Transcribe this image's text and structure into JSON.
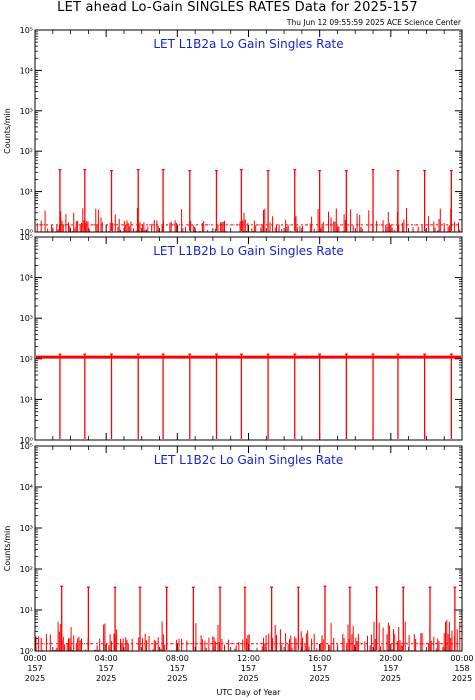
{
  "header": {
    "title": "LET ahead Lo-Gain SINGLES RATES Data for 2025-157",
    "timestamp": "Thu Jun 12 09:55:59 2025 ACE Science Center"
  },
  "colors": {
    "data": "#ff0000",
    "panel_title": "#1a22d6",
    "axes": "#000000"
  },
  "chart_data": [
    {
      "type": "line",
      "title": "LET L1B2a Lo Gain Singles Rate",
      "ylabel": "Counts/min",
      "yscale": "log",
      "ylim": [
        1,
        100000
      ],
      "yticks": [
        "10⁰",
        "10¹",
        "10²",
        "10³",
        "10⁴",
        "10⁵"
      ],
      "xlim_hours": [
        0,
        24
      ],
      "baseline": 1.5,
      "noise_max": 4,
      "spikes": [
        {
          "hour": 1.4,
          "value": 35
        },
        {
          "hour": 2.8,
          "value": 35
        },
        {
          "hour": 4.3,
          "value": 33
        },
        {
          "hour": 5.8,
          "value": 35
        },
        {
          "hour": 7.2,
          "value": 35
        },
        {
          "hour": 8.7,
          "value": 33
        },
        {
          "hour": 10.2,
          "value": 33
        },
        {
          "hour": 11.6,
          "value": 35
        },
        {
          "hour": 13.1,
          "value": 33
        },
        {
          "hour": 14.6,
          "value": 35
        },
        {
          "hour": 16.0,
          "value": 33
        },
        {
          "hour": 17.5,
          "value": 33
        },
        {
          "hour": 19.0,
          "value": 35
        },
        {
          "hour": 20.4,
          "value": 33
        },
        {
          "hour": 21.9,
          "value": 33
        },
        {
          "hour": 23.4,
          "value": 33
        }
      ]
    },
    {
      "type": "line",
      "title": "LET L1B2b Lo Gain Singles Rate",
      "ylabel": "",
      "yscale": "log",
      "ylim": [
        1,
        100000
      ],
      "yticks": [
        "10⁰",
        "10¹",
        "10²",
        "10³",
        "10⁴",
        "10⁵"
      ],
      "xlim_hours": [
        0,
        24
      ],
      "baseline": 110,
      "noise_max": 120,
      "spikes": [
        {
          "hour": 1.4,
          "value": 130
        },
        {
          "hour": 2.8,
          "value": 130
        },
        {
          "hour": 4.3,
          "value": 130
        },
        {
          "hour": 5.8,
          "value": 130
        },
        {
          "hour": 7.2,
          "value": 130
        },
        {
          "hour": 8.7,
          "value": 130
        },
        {
          "hour": 10.2,
          "value": 130
        },
        {
          "hour": 11.6,
          "value": 130
        },
        {
          "hour": 13.1,
          "value": 130
        },
        {
          "hour": 14.6,
          "value": 130
        },
        {
          "hour": 16.0,
          "value": 130
        },
        {
          "hour": 17.5,
          "value": 130
        },
        {
          "hour": 19.0,
          "value": 130
        },
        {
          "hour": 20.4,
          "value": 130
        },
        {
          "hour": 21.9,
          "value": 130
        },
        {
          "hour": 23.4,
          "value": 130
        }
      ]
    },
    {
      "type": "line",
      "title": "LET L1B2c Lo Gain Singles Rate",
      "ylabel": "Counts/min",
      "yscale": "log",
      "ylim": [
        1,
        100000
      ],
      "yticks": [
        "10⁰",
        "10¹",
        "10²",
        "10³",
        "10⁴",
        "10⁵"
      ],
      "xlim_hours": [
        0,
        24
      ],
      "baseline": 1.5,
      "noise_max": 6,
      "spikes": [
        {
          "hour": 1.5,
          "value": 38
        },
        {
          "hour": 3.0,
          "value": 36
        },
        {
          "hour": 4.5,
          "value": 36
        },
        {
          "hour": 5.9,
          "value": 36
        },
        {
          "hour": 7.4,
          "value": 36
        },
        {
          "hour": 8.9,
          "value": 36
        },
        {
          "hour": 10.4,
          "value": 36
        },
        {
          "hour": 11.8,
          "value": 36
        },
        {
          "hour": 13.3,
          "value": 36
        },
        {
          "hour": 14.8,
          "value": 36
        },
        {
          "hour": 16.3,
          "value": 38
        },
        {
          "hour": 17.7,
          "value": 36
        },
        {
          "hour": 19.2,
          "value": 36
        },
        {
          "hour": 20.7,
          "value": 36
        },
        {
          "hour": 22.2,
          "value": 36
        },
        {
          "hour": 23.6,
          "value": 36
        }
      ]
    }
  ],
  "x_axis": {
    "label": "UTC Day of Year",
    "ticks": [
      {
        "hour": 0,
        "time": "00:00",
        "doy": "157",
        "year": "2025"
      },
      {
        "hour": 4,
        "time": "04:00",
        "doy": "157",
        "year": "2025"
      },
      {
        "hour": 8,
        "time": "08:00",
        "doy": "157",
        "year": "2025"
      },
      {
        "hour": 12,
        "time": "12:00",
        "doy": "157",
        "year": "2025"
      },
      {
        "hour": 16,
        "time": "16:00",
        "doy": "157",
        "year": "2025"
      },
      {
        "hour": 20,
        "time": "20:00",
        "doy": "157",
        "year": "2025"
      },
      {
        "hour": 24,
        "time": "00:00",
        "doy": "158",
        "year": "2025"
      }
    ]
  }
}
